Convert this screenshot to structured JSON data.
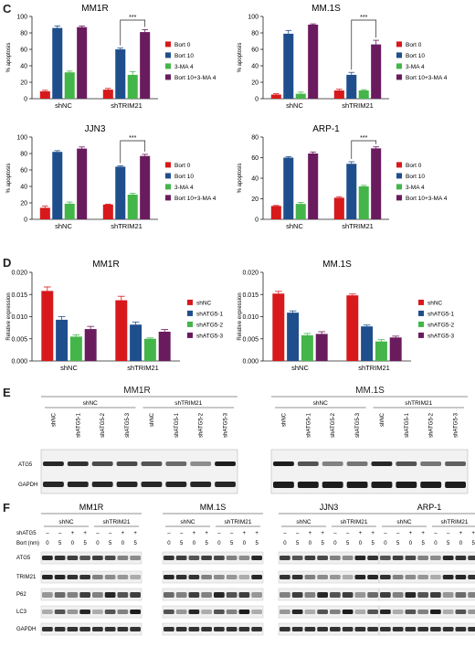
{
  "panels": {
    "C": "C",
    "D": "D",
    "E": "E",
    "F": "F"
  },
  "chart_data": [
    {
      "type": "bar",
      "title": "MM1R",
      "ylabel": "% apoptosis",
      "ylim": [
        0,
        100
      ],
      "yticks": [
        "0",
        "20",
        "40",
        "60",
        "80",
        "100"
      ],
      "categories": [
        "shNC",
        "shTRIM21"
      ],
      "series": [
        {
          "name": "Bort 0",
          "color": "#d7191c",
          "values": [
            9,
            11
          ],
          "errors": [
            1.2,
            1.5
          ]
        },
        {
          "name": "Bort 10",
          "color": "#1f4e8c",
          "values": [
            86,
            60
          ],
          "errors": [
            2.5,
            1.5
          ]
        },
        {
          "name": "3-MA 4",
          "color": "#44b549",
          "values": [
            32,
            29
          ],
          "errors": [
            1.5,
            4
          ]
        },
        {
          "name": "Bort 10+3-MA 4",
          "color": "#6a1b5e",
          "values": [
            87,
            81
          ],
          "errors": [
            1.5,
            3
          ]
        }
      ],
      "annotation": "***"
    },
    {
      "type": "bar",
      "title": "MM.1S",
      "ylabel": "% apoptosis",
      "ylim": [
        0,
        100
      ],
      "yticks": [
        "0",
        "20",
        "40",
        "60",
        "80",
        "100"
      ],
      "categories": [
        "shNC",
        "shTRIM21"
      ],
      "series": [
        {
          "name": "Bort 0",
          "color": "#d7191c",
          "values": [
            5,
            10
          ],
          "errors": [
            1,
            1.5
          ]
        },
        {
          "name": "Bort 10",
          "color": "#1f4e8c",
          "values": [
            79,
            29
          ],
          "errors": [
            4,
            3
          ]
        },
        {
          "name": "3-MA 4",
          "color": "#44b549",
          "values": [
            6,
            10
          ],
          "errors": [
            2,
            1
          ]
        },
        {
          "name": "Bort 10+3-MA 4",
          "color": "#6a1b5e",
          "values": [
            90,
            66
          ],
          "errors": [
            1,
            5
          ]
        }
      ],
      "annotation": "***"
    },
    {
      "type": "bar",
      "title": "JJN3",
      "ylabel": "% apoptosis",
      "ylim": [
        0,
        100
      ],
      "yticks": [
        "0",
        "20",
        "40",
        "60",
        "80",
        "100"
      ],
      "categories": [
        "shNC",
        "shTRIM21"
      ],
      "series": [
        {
          "name": "Bort 0",
          "color": "#d7191c",
          "values": [
            14,
            18
          ],
          "errors": [
            2,
            0.5
          ]
        },
        {
          "name": "Bort 10",
          "color": "#1f4e8c",
          "values": [
            82,
            64
          ],
          "errors": [
            1.5,
            1
          ]
        },
        {
          "name": "3-MA 4",
          "color": "#44b549",
          "values": [
            19,
            30
          ],
          "errors": [
            2,
            1.5
          ]
        },
        {
          "name": "Bort 10+3-MA 4",
          "color": "#6a1b5e",
          "values": [
            86,
            77
          ],
          "errors": [
            2,
            2
          ]
        }
      ],
      "annotation": "***"
    },
    {
      "type": "bar",
      "title": "ARP-1",
      "ylabel": "% apoptosis",
      "ylim": [
        0,
        80
      ],
      "yticks": [
        "0",
        "20",
        "40",
        "60",
        "80"
      ],
      "categories": [
        "shNC",
        "shTRIM21"
      ],
      "series": [
        {
          "name": "Bort 0",
          "color": "#d7191c",
          "values": [
            13,
            21
          ],
          "errors": [
            0.5,
            1
          ]
        },
        {
          "name": "Bort 10",
          "color": "#1f4e8c",
          "values": [
            60,
            54
          ],
          "errors": [
            1,
            2
          ]
        },
        {
          "name": "3-MA 4",
          "color": "#44b549",
          "values": [
            15,
            32
          ],
          "errors": [
            1.5,
            1
          ]
        },
        {
          "name": "Bort 10+3-MA 4",
          "color": "#6a1b5e",
          "values": [
            64,
            69
          ],
          "errors": [
            1.5,
            1.5
          ]
        }
      ],
      "annotation": "***"
    },
    {
      "type": "bar",
      "title": "MM1R",
      "ylabel": "Relative expression",
      "ylim": [
        0,
        0.02
      ],
      "yticks": [
        "0.000",
        "0.005",
        "0.010",
        "0.015",
        "0.020"
      ],
      "categories": [
        "shNC",
        "shTRIM21"
      ],
      "series": [
        {
          "name": "shNC",
          "color": "#d7191c",
          "values": [
            0.0158,
            0.0137
          ],
          "errors": [
            0.0009,
            0.0009
          ]
        },
        {
          "name": "shATG5-1",
          "color": "#1f4e8c",
          "values": [
            0.0093,
            0.0082
          ],
          "errors": [
            0.0007,
            0.0006
          ]
        },
        {
          "name": "shATG5-2",
          "color": "#44b549",
          "values": [
            0.0055,
            0.005
          ],
          "errors": [
            0.0004,
            0.0002
          ]
        },
        {
          "name": "shATG5-3",
          "color": "#6a1b5e",
          "values": [
            0.0072,
            0.0066
          ],
          "errors": [
            0.0006,
            0.0005
          ]
        }
      ]
    },
    {
      "type": "bar",
      "title": "MM.1S",
      "ylabel": "Relative expression",
      "ylim": [
        0,
        0.02
      ],
      "yticks": [
        "0.000",
        "0.005",
        "0.010",
        "0.015",
        "0.020"
      ],
      "categories": [
        "shNC",
        "shTRIM21"
      ],
      "series": [
        {
          "name": "shNC",
          "color": "#d7191c",
          "values": [
            0.0152,
            0.0148
          ],
          "errors": [
            0.0005,
            0.0003
          ]
        },
        {
          "name": "shATG5-1",
          "color": "#1f4e8c",
          "values": [
            0.0109,
            0.0078
          ],
          "errors": [
            0.0004,
            0.0003
          ]
        },
        {
          "name": "shATG5-2",
          "color": "#44b549",
          "values": [
            0.0058,
            0.0044
          ],
          "errors": [
            0.0004,
            0.0004
          ]
        },
        {
          "name": "shATG5-3",
          "color": "#6a1b5e",
          "values": [
            0.0061,
            0.0053
          ],
          "errors": [
            0.0005,
            0.0003
          ]
        }
      ]
    }
  ],
  "blots_E": {
    "left": {
      "title": "MM1R",
      "groups": [
        "shNC",
        "shTRIM21"
      ],
      "lanes": [
        "shNC",
        "shATG5-1",
        "shATG5-2",
        "shATG5-3",
        "shNC",
        "shATG5-1",
        "shATG5-2",
        "shATG5-3"
      ],
      "rows": [
        "ATG5",
        "GAPDH"
      ]
    },
    "right": {
      "title": "MM.1S",
      "groups": [
        "shNC",
        "shTRIM21"
      ],
      "lanes": [
        "shNC",
        "shATG5-1",
        "shATG5-2",
        "shATG5-3",
        "shNC",
        "shATG5-1",
        "shATG5-2",
        "shATG5-3"
      ]
    }
  },
  "blots_F": {
    "titles": [
      "MM1R",
      "MM.1S",
      "JJN3",
      "ARP-1"
    ],
    "groups": [
      "shNC",
      "shTRIM21"
    ],
    "row_headers": [
      "shATG5",
      "Bort (nm)"
    ],
    "shatg5_signs": [
      "–",
      "–",
      "+",
      "+",
      "–",
      "–",
      "+",
      "+"
    ],
    "bort_values": [
      "0",
      "5",
      "0",
      "5",
      "0",
      "5",
      "0",
      "5"
    ],
    "rows": [
      "ATG5",
      "TRIM21",
      "P62",
      "LC3",
      "GAPDH"
    ]
  }
}
